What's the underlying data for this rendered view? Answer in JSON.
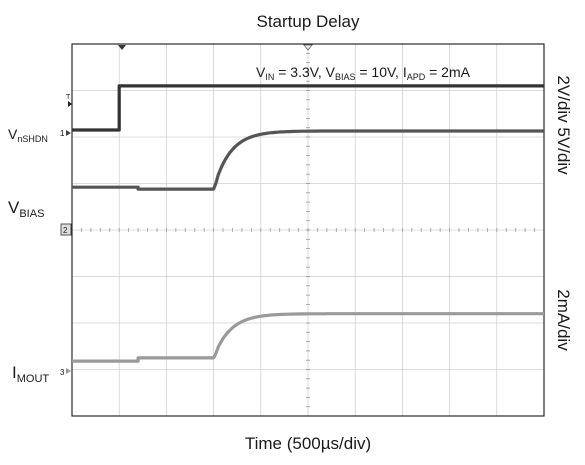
{
  "chart_data": {
    "type": "line",
    "title": "Startup Delay",
    "xlabel": "Time (500µs/div)",
    "right_labels": {
      "upper": "2V/div 5V/div",
      "lower": "2mA/div"
    },
    "conditions": {
      "vin_main": "V",
      "vin_sub": "IN",
      "vin_val": " = 3.3V, ",
      "vbias_main": "V",
      "vbias_sub": "BIAS",
      "vbias_val": " = 10V, ",
      "iapd_main": "I",
      "iapd_sub": "APD",
      "iapd_val": " = 2mA"
    },
    "channel_labels": [
      {
        "main": "V",
        "sub": "nSHDN"
      },
      {
        "main": "V",
        "sub": "BIAS"
      },
      {
        "main": "I",
        "sub": "MOUT"
      }
    ],
    "channel_markers": [
      "1",
      "2",
      "3",
      "T"
    ],
    "grid": {
      "x_divs": 10,
      "y_divs": 8,
      "visible": true
    },
    "x_range_div": [
      0,
      10
    ],
    "y_range_div": [
      0,
      8
    ],
    "series": [
      {
        "name": "VnSHDN",
        "color": "#333333",
        "points": [
          [
            0.0,
            6.15
          ],
          [
            1.0,
            6.15
          ],
          [
            1.0,
            7.1
          ],
          [
            10.0,
            7.1
          ]
        ]
      },
      {
        "name": "VBIAS",
        "color": "#555555",
        "shape": "rise",
        "start": 3.0,
        "tau": 0.35,
        "points": [
          [
            0.0,
            4.92
          ],
          [
            1.4,
            4.92
          ],
          [
            1.4,
            4.88
          ],
          [
            3.0,
            4.88
          ],
          [
            10.0,
            6.13
          ]
        ]
      },
      {
        "name": "IMOUT",
        "color": "#9a9a9a",
        "shape": "rise",
        "start": 3.0,
        "tau": 0.35,
        "points": [
          [
            0.0,
            1.18
          ],
          [
            1.4,
            1.18
          ],
          [
            1.4,
            1.25
          ],
          [
            3.0,
            1.25
          ],
          [
            10.0,
            2.2
          ]
        ]
      }
    ]
  }
}
